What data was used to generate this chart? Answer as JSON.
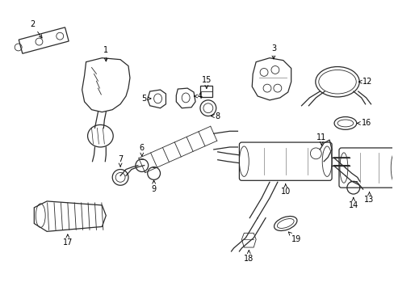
{
  "bg_color": "#ffffff",
  "line_color": "#2a2a2a",
  "label_color": "#000000",
  "figsize": [
    4.89,
    3.6
  ],
  "dpi": 100
}
